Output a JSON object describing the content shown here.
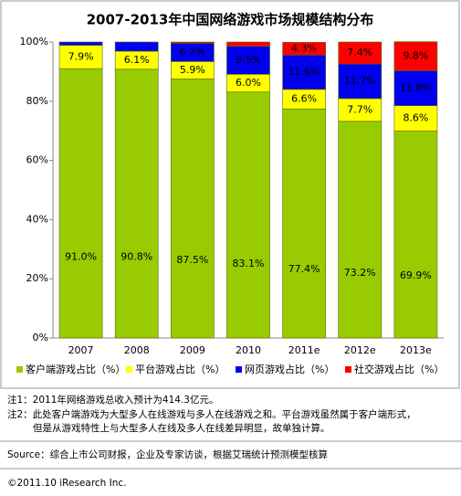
{
  "chart_data": {
    "type": "stacked-bar",
    "title": "2007-2013年中国网络游戏市场规模结构分布",
    "categories": [
      "2007",
      "2008",
      "2009",
      "2010",
      "2011e",
      "2012e",
      "2013e"
    ],
    "series": [
      {
        "name": "客户端游戏占比（%）",
        "color": "#99cc00",
        "label_color": "#333333",
        "values": [
          91.0,
          90.8,
          87.5,
          83.1,
          77.4,
          73.2,
          69.9
        ],
        "value_labels": [
          "91.0%",
          "90.8%",
          "87.5%",
          "83.1%",
          "77.4%",
          "73.2%",
          "69.9%"
        ]
      },
      {
        "name": "平台游戏占比（%）",
        "color": "#ffff00",
        "label_color": "#000000",
        "values": [
          7.9,
          6.1,
          5.9,
          6.0,
          6.6,
          7.7,
          8.6
        ],
        "value_labels": [
          "7.9%",
          "6.1%",
          "5.9%",
          "6.0%",
          "6.6%",
          "7.7%",
          "8.6%"
        ]
      },
      {
        "name": "网页游戏占比（%）",
        "color": "#0000ee",
        "label_color": "#ffffff",
        "values": [
          1.1,
          3.1,
          6.2,
          9.5,
          11.6,
          11.7,
          11.8
        ],
        "value_labels": [
          null,
          null,
          "6.2%",
          "9.5%",
          "11.6%",
          "11.7%",
          "11.8%"
        ]
      },
      {
        "name": "社交游戏占比（%）",
        "color": "#ff0000",
        "label_color": "#ffffff",
        "values": [
          0,
          0,
          0.4,
          1.4,
          4.3,
          7.4,
          9.8
        ],
        "value_labels": [
          null,
          null,
          null,
          null,
          "4.3%",
          "7.4%",
          "9.8%"
        ]
      }
    ],
    "ylim": [
      0,
      100
    ],
    "yticks": [
      {
        "value": 0,
        "label": "0%"
      },
      {
        "value": 20,
        "label": "20%"
      },
      {
        "value": 40,
        "label": "40%"
      },
      {
        "value": 60,
        "label": "60%"
      },
      {
        "value": 80,
        "label": "80%"
      },
      {
        "value": 100,
        "label": "100%"
      }
    ],
    "grid": false,
    "legend": "bottom"
  },
  "notes": [
    "注1：2011年网络游戏总收入预计为414.3亿元。",
    "注2：此处客户端游戏为大型多人在线游戏与多人在线游戏之和。平台游戏虽然属于客户端形式，",
    "但是从游戏特性上与大型多人在线及多人在线差异明显，故单独计算。"
  ],
  "source": "Source：综合上市公司财报，企业及专家访谈，根据艾瑞统计预测模型核算",
  "copyright": "©2011.10 iResearch Inc."
}
